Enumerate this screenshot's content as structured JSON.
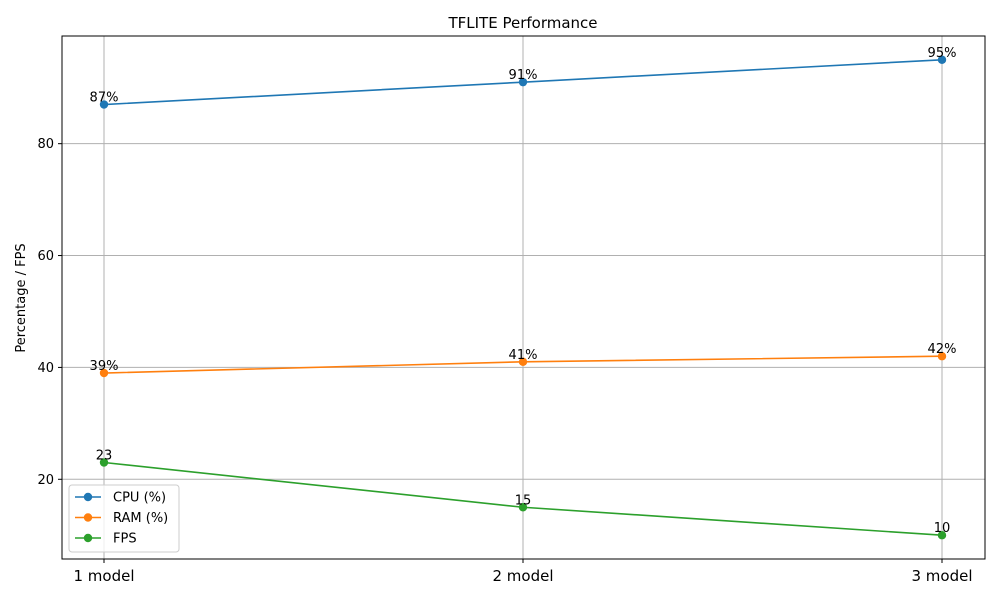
{
  "chart_data": {
    "type": "line",
    "title": "TFLITE Performance",
    "xlabel": "",
    "ylabel": "Percentage / FPS",
    "categories": [
      "1 model",
      "2 model",
      "3 model"
    ],
    "ylim": [
      5.75,
      99.25
    ],
    "yticks": [
      20,
      40,
      60,
      80
    ],
    "grid": true,
    "legend_position": "lower-left",
    "series": [
      {
        "name": "CPU (%)",
        "values": [
          87,
          91,
          95
        ],
        "labels": [
          "87%",
          "91%",
          "95%"
        ],
        "color": "#1f77b4"
      },
      {
        "name": "RAM (%)",
        "values": [
          39,
          41,
          42
        ],
        "labels": [
          "39%",
          "41%",
          "42%"
        ],
        "color": "#ff7f0e"
      },
      {
        "name": "FPS",
        "values": [
          23,
          15,
          10
        ],
        "labels": [
          "23",
          "15",
          "10"
        ],
        "color": "#2ca02c"
      }
    ]
  }
}
